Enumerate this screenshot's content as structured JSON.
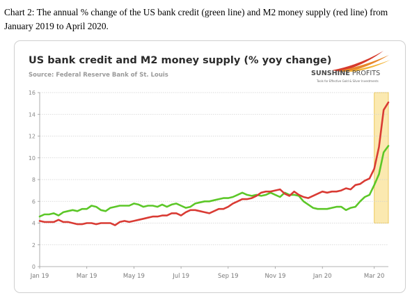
{
  "caption": "Chart 2: The annual % change of the US bank credit (green line) and M2 money supply (red line) from January 2019 to April 2020.",
  "logo": {
    "name_bold": "SUNSHINE",
    "name_light": " PROFITS",
    "tagline": "Tools for Effective Gold & Silver Investments"
  },
  "colors": {
    "bank_credit": "#5cc728",
    "m2": "#d93b34",
    "highlight_fill": "#fbe9b0",
    "highlight_border": "#ecc95c"
  },
  "chart_data": {
    "type": "line",
    "title": "US bank credit and M2 money supply (% yoy change)",
    "subtitle": "Source: Federal Reserve Bank of St. Louis",
    "xlabel": "",
    "ylabel": "",
    "ylim": [
      0,
      16
    ],
    "yticks": [
      "0",
      "2",
      "4",
      "6",
      "8",
      "10",
      "12",
      "14",
      "16"
    ],
    "xticks": [
      "Jan 19",
      "Mar 19",
      "May 19",
      "Jul 19",
      "Sep 19",
      "Nov 19",
      "Jan 20",
      "Mar 20"
    ],
    "grid": true,
    "highlight": {
      "from": "Mar 20",
      "to": "end",
      "ymin": 4,
      "ymax": 16
    },
    "series": [
      {
        "key": "bank_credit",
        "values": [
          4.6,
          4.8,
          4.8,
          4.9,
          4.7,
          5.0,
          5.1,
          5.2,
          5.1,
          5.3,
          5.3,
          5.6,
          5.5,
          5.2,
          5.1,
          5.4,
          5.5,
          5.6,
          5.6,
          5.6,
          5.8,
          5.7,
          5.5,
          5.6,
          5.6,
          5.5,
          5.7,
          5.5,
          5.7,
          5.8,
          5.6,
          5.4,
          5.5,
          5.8,
          5.9,
          6.0,
          6.0,
          6.1,
          6.2,
          6.3,
          6.3,
          6.4,
          6.6,
          6.8,
          6.6,
          6.5,
          6.6,
          6.5,
          6.6,
          6.8,
          6.6,
          6.4,
          6.8,
          6.6,
          6.6,
          6.5,
          6.0,
          5.7,
          5.4,
          5.3,
          5.3,
          5.3,
          5.4,
          5.5,
          5.5,
          5.2,
          5.4,
          5.5,
          6.0,
          6.4,
          6.6,
          7.5,
          8.5,
          10.5,
          11.1
        ]
      },
      {
        "key": "m2",
        "values": [
          4.2,
          4.1,
          4.1,
          4.1,
          4.3,
          4.1,
          4.1,
          4.0,
          3.9,
          3.9,
          4.0,
          4.0,
          3.9,
          4.0,
          4.0,
          4.0,
          3.8,
          4.1,
          4.2,
          4.1,
          4.2,
          4.3,
          4.4,
          4.5,
          4.6,
          4.6,
          4.7,
          4.7,
          4.9,
          4.9,
          4.7,
          5.0,
          5.2,
          5.2,
          5.1,
          5.0,
          4.9,
          5.1,
          5.3,
          5.3,
          5.5,
          5.8,
          6.0,
          6.2,
          6.2,
          6.3,
          6.5,
          6.8,
          6.9,
          6.9,
          7.0,
          7.1,
          6.7,
          6.5,
          6.9,
          6.6,
          6.4,
          6.3,
          6.5,
          6.7,
          6.9,
          6.8,
          6.9,
          6.9,
          7.0,
          7.2,
          7.1,
          7.5,
          7.6,
          7.9,
          8.1,
          9.0,
          11.0,
          14.4,
          15.1
        ]
      }
    ]
  }
}
